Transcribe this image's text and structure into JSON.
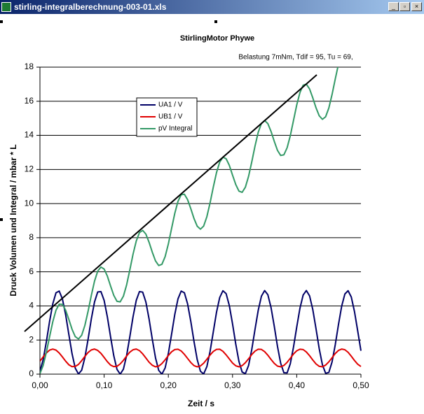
{
  "window": {
    "title": "stirling-integralberechnung-003-01.xls"
  },
  "chart_data": {
    "type": "line",
    "title": "StirlingMotor Phywe",
    "subtitle": "Belastung 7mNm, Tdif = 95, Tu = 69,",
    "x_label": "Zeit / s",
    "y_label": "Druck Volumen und Integral  /  mbar * L",
    "xlim": [
      0,
      0.5
    ],
    "ylim": [
      0,
      18
    ],
    "xticks": [
      {
        "value": 0,
        "label": "0,00"
      },
      {
        "value": 0.1,
        "label": "0,10"
      },
      {
        "value": 0.2,
        "label": "0,20"
      },
      {
        "value": 0.3,
        "label": "0,30"
      },
      {
        "value": 0.4,
        "label": "0,40"
      },
      {
        "value": 0.5,
        "label": "0,50"
      }
    ],
    "yticks": [
      0,
      2,
      4,
      6,
      8,
      10,
      12,
      14,
      16,
      18
    ],
    "grid": true,
    "x": [
      0,
      0.005,
      0.01,
      0.015,
      0.02,
      0.025,
      0.03,
      0.035,
      0.04,
      0.045,
      0.05,
      0.055,
      0.06,
      0.065,
      0.07,
      0.075,
      0.08,
      0.085,
      0.09,
      0.095,
      0.1,
      0.105,
      0.11,
      0.115,
      0.12,
      0.125,
      0.13,
      0.135,
      0.14,
      0.145,
      0.15,
      0.155,
      0.16,
      0.165,
      0.17,
      0.175,
      0.18,
      0.185,
      0.19,
      0.195,
      0.2,
      0.205,
      0.21,
      0.215,
      0.22,
      0.225,
      0.23,
      0.235,
      0.24,
      0.245,
      0.25,
      0.255,
      0.26,
      0.265,
      0.27,
      0.275,
      0.28,
      0.285,
      0.29,
      0.295,
      0.3,
      0.305,
      0.31,
      0.315,
      0.32,
      0.325,
      0.33,
      0.335,
      0.34,
      0.345,
      0.35,
      0.355,
      0.36,
      0.365,
      0.37,
      0.375,
      0.38,
      0.385,
      0.39,
      0.395,
      0.4,
      0.405,
      0.41,
      0.415,
      0.42,
      0.425,
      0.43,
      0.435,
      0.44,
      0.445,
      0.45,
      0.455,
      0.46,
      0.465,
      0.47,
      0.475,
      0.48,
      0.485,
      0.49,
      0.495,
      0.5
    ],
    "series": [
      {
        "name": "UA1 / V",
        "color": "#000066",
        "values": [
          0.17,
          0.85,
          1.9,
          3.09,
          4.12,
          4.77,
          4.87,
          4.41,
          3.49,
          2.33,
          1.2,
          0.35,
          0.01,
          0.23,
          0.97,
          2.05,
          3.23,
          4.23,
          4.82,
          4.84,
          4.32,
          3.36,
          2.19,
          1.08,
          0.28,
          0.0,
          0.29,
          1.09,
          2.19,
          3.36,
          4.32,
          4.84,
          4.81,
          4.23,
          3.23,
          2.05,
          0.96,
          0.22,
          0.0,
          0.36,
          1.21,
          2.33,
          3.49,
          4.41,
          4.87,
          4.77,
          4.12,
          3.09,
          1.91,
          0.85,
          0.17,
          0.01,
          0.44,
          1.33,
          2.47,
          3.62,
          4.49,
          4.89,
          4.72,
          4.02,
          2.95,
          1.77,
          0.74,
          0.12,
          0.03,
          0.51,
          1.45,
          2.62,
          3.74,
          4.57,
          4.9,
          4.66,
          3.9,
          2.81,
          1.63,
          0.64,
          0.08,
          0.07,
          0.61,
          1.59,
          2.76,
          3.86,
          4.64,
          4.9,
          4.59,
          3.79,
          2.67,
          1.5,
          0.55,
          0.05,
          0.1,
          0.71,
          1.72,
          2.9,
          3.98,
          4.7,
          4.89,
          4.52,
          3.66,
          2.53,
          1.37
        ]
      },
      {
        "name": "UB1 / V",
        "color": "#e00000",
        "values": [
          0.76,
          1.01,
          1.24,
          1.41,
          1.47,
          1.41,
          1.24,
          1.01,
          0.76,
          0.55,
          0.44,
          0.45,
          0.57,
          0.79,
          1.04,
          1.27,
          1.42,
          1.47,
          1.39,
          1.22,
          0.98,
          0.73,
          0.53,
          0.44,
          0.46,
          0.6,
          0.81,
          1.06,
          1.29,
          1.43,
          1.47,
          1.38,
          1.19,
          0.95,
          0.7,
          0.52,
          0.43,
          0.47,
          0.62,
          0.84,
          1.09,
          1.31,
          1.44,
          1.46,
          1.36,
          1.16,
          0.92,
          0.68,
          0.5,
          0.43,
          0.48,
          0.64,
          0.87,
          1.12,
          1.33,
          1.45,
          1.46,
          1.34,
          1.13,
          0.89,
          0.65,
          0.49,
          0.43,
          0.5,
          0.67,
          0.9,
          1.15,
          1.35,
          1.46,
          1.45,
          1.32,
          1.11,
          0.86,
          0.63,
          0.47,
          0.43,
          0.51,
          0.69,
          0.93,
          1.18,
          1.37,
          1.46,
          1.44,
          1.3,
          1.08,
          0.83,
          0.6,
          0.46,
          0.43,
          0.53,
          0.72,
          0.96,
          1.21,
          1.39,
          1.47,
          1.43,
          1.28,
          1.05,
          0.8,
          0.58,
          0.45
        ]
      },
      {
        "name": "pV Integral",
        "color": "#339966",
        "values": [
          0.03,
          0.51,
          1.28,
          2.19,
          3.07,
          3.75,
          4.1,
          4.09,
          3.75,
          3.21,
          2.63,
          2.2,
          2.06,
          2.28,
          2.86,
          3.69,
          4.61,
          5.45,
          6.04,
          6.28,
          6.16,
          5.75,
          5.17,
          4.62,
          4.27,
          4.24,
          4.57,
          5.23,
          6.11,
          7.03,
          7.8,
          8.3,
          8.43,
          8.21,
          7.73,
          7.15,
          6.64,
          6.37,
          6.44,
          6.89,
          7.63,
          8.53,
          9.42,
          10.13,
          10.52,
          10.55,
          10.23,
          9.7,
          9.12,
          8.67,
          8.5,
          8.68,
          9.23,
          10.04,
          10.96,
          11.81,
          12.43,
          12.72,
          12.63,
          12.24,
          11.67,
          11.12,
          10.73,
          10.66,
          10.96,
          11.6,
          12.45,
          13.37,
          14.18,
          14.7,
          14.87,
          14.69,
          14.23,
          13.65,
          13.12,
          12.82,
          12.86,
          13.27,
          13.98,
          14.88,
          15.78,
          16.51,
          16.94,
          17.0,
          16.72,
          16.2,
          15.62,
          15.15,
          14.94,
          15.09,
          15.6,
          16.39,
          17.3,
          18.17,
          null,
          null,
          null,
          null,
          null,
          null,
          null
        ]
      }
    ]
  }
}
